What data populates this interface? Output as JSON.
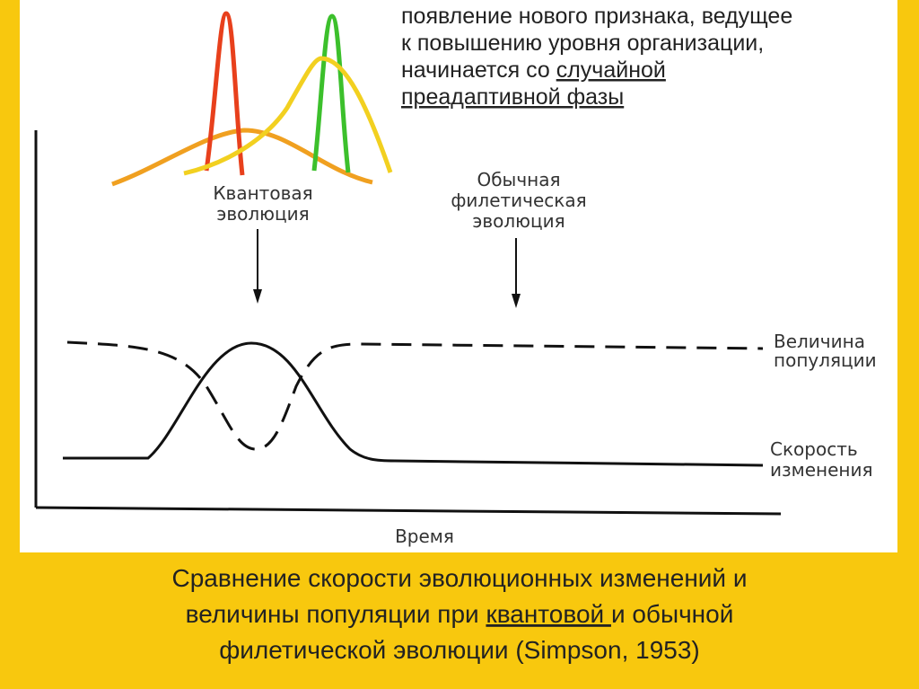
{
  "note": {
    "lines": [
      [
        "появление нового признака, ведущее"
      ],
      [
        "к повышению уровня организации,"
      ],
      [
        "начинается со ",
        "случайной"
      ],
      [
        "преадаптивной фазы"
      ]
    ]
  },
  "diagram": {
    "quantum_label": [
      "Квантовая",
      "эволюция"
    ],
    "phyletic_label": [
      "Обычная",
      "филетическая",
      "эволюция"
    ],
    "population_label": [
      "Величина",
      "популяции"
    ],
    "rate_label": [
      "Скорость",
      "изменения"
    ],
    "x_axis_label": "Время"
  },
  "caption": {
    "lines": [
      [
        "Сравнение скорости эволюционных изменений и"
      ],
      [
        "величины популяции при ",
        "квантовой ",
        "и обычной"
      ],
      [
        "филетической эволюции (Simpson, 1953)"
      ]
    ]
  }
}
